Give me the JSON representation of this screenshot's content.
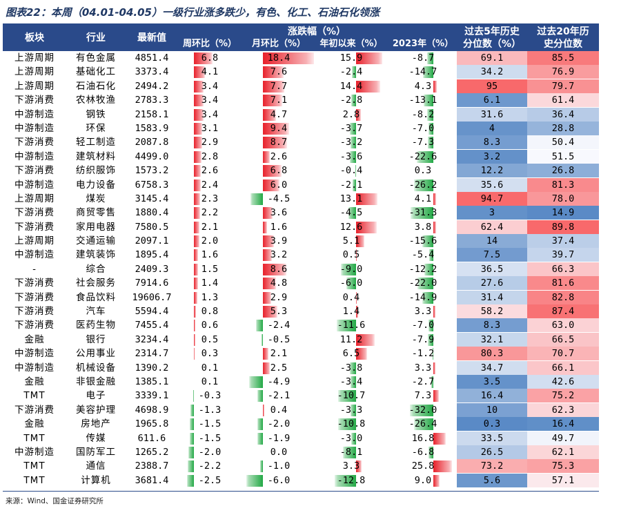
{
  "title": "图表22：本周（04.01-04.05）一级行业涨多跌少，有色、化工、石油石化领涨",
  "header": {
    "sector": "板块",
    "industry": "行业",
    "latest": "最新值",
    "change_group": "涨跌幅（%）",
    "weekly": "周环比（%）",
    "monthly": "月环比（%）",
    "ytd": "年初以来（%）",
    "y2023": "2023年（%）",
    "pct5_line1": "过去5年历史",
    "pct5_line2": "分位数（%）",
    "pct20_line1": "过去20年历",
    "pct20_line2": "史分位数"
  },
  "colors": {
    "header_bg": "#2a4a8a",
    "positive": "#e8202a",
    "negative": "#22a845",
    "heat_high": "#f8696b",
    "heat_mid": "#fcfcff",
    "heat_low": "#5a8ac6"
  },
  "rows": [
    {
      "sector": "上游周期",
      "industry": "有色金属",
      "latest": "4851.4",
      "w": "6.8",
      "m": "18.4",
      "ytd": "15.9",
      "y23": "-8.7",
      "p5": "69.1",
      "p20": "85.5"
    },
    {
      "sector": "上游周期",
      "industry": "基础化工",
      "latest": "3373.4",
      "w": "4.1",
      "m": "7.6",
      "ytd": "-2.4",
      "y23": "-14.7",
      "p5": "34.2",
      "p20": "76.9"
    },
    {
      "sector": "上游周期",
      "industry": "石油石化",
      "latest": "2494.2",
      "w": "3.4",
      "m": "7.7",
      "ytd": "14.4",
      "y23": "4.3",
      "p5": "95",
      "p20": "79.7"
    },
    {
      "sector": "下游消费",
      "industry": "农林牧渔",
      "latest": "2783.3",
      "w": "3.4",
      "m": "7.1",
      "ytd": "-2.8",
      "y23": "-13.1",
      "p5": "6.1",
      "p20": "61.4"
    },
    {
      "sector": "中游制造",
      "industry": "钢铁",
      "latest": "2158.1",
      "w": "3.4",
      "m": "4.7",
      "ytd": "2.8",
      "y23": "-8.2",
      "p5": "31.6",
      "p20": "36.4"
    },
    {
      "sector": "中游制造",
      "industry": "环保",
      "latest": "1583.9",
      "w": "3.1",
      "m": "9.4",
      "ytd": "-3.7",
      "y23": "-7.0",
      "p5": "4",
      "p20": "28.8"
    },
    {
      "sector": "下游消费",
      "industry": "轻工制造",
      "latest": "2087.8",
      "w": "2.9",
      "m": "8.7",
      "ytd": "-3.2",
      "y23": "-7.3",
      "p5": "8.3",
      "p20": "50.4"
    },
    {
      "sector": "中游制造",
      "industry": "建筑材料",
      "latest": "4499.0",
      "w": "2.8",
      "m": "2.6",
      "ytd": "-3.6",
      "y23": "-22.6",
      "p5": "3.2",
      "p20": "51.5"
    },
    {
      "sector": "下游消费",
      "industry": "纺织服饰",
      "latest": "1573.2",
      "w": "2.6",
      "m": "6.8",
      "ytd": "-0.4",
      "y23": "0.3",
      "p5": "12.2",
      "p20": "26.8"
    },
    {
      "sector": "中游制造",
      "industry": "电力设备",
      "latest": "6758.3",
      "w": "2.4",
      "m": "6.0",
      "ytd": "-2.1",
      "y23": "-26.2",
      "p5": "35.6",
      "p20": "81.3"
    },
    {
      "sector": "上游周期",
      "industry": "煤炭",
      "latest": "3145.4",
      "w": "2.3",
      "m": "-4.5",
      "ytd": "13.1",
      "y23": "4.1",
      "p5": "94.7",
      "p20": "78.0"
    },
    {
      "sector": "下游消费",
      "industry": "商贸零售",
      "latest": "1880.4",
      "w": "2.2",
      "m": "3.6",
      "ytd": "-4.5",
      "y23": "-31.3",
      "p5": "3",
      "p20": "14.9"
    },
    {
      "sector": "下游消费",
      "industry": "家用电器",
      "latest": "7580.5",
      "w": "2.1",
      "m": "1.6",
      "ytd": "12.6",
      "y23": "3.8",
      "p5": "62.4",
      "p20": "89.8"
    },
    {
      "sector": "上游周期",
      "industry": "交通运输",
      "latest": "2097.1",
      "w": "2.0",
      "m": "3.9",
      "ytd": "5.1",
      "y23": "-15.6",
      "p5": "14",
      "p20": "37.4"
    },
    {
      "sector": "中游制造",
      "industry": "建筑装饰",
      "latest": "1895.4",
      "w": "1.6",
      "m": "3.2",
      "ytd": "0.5",
      "y23": "-5.4",
      "p5": "7.5",
      "p20": "39.7"
    },
    {
      "sector": "-",
      "industry": "综合",
      "latest": "2409.3",
      "w": "1.5",
      "m": "8.6",
      "ytd": "-9.0",
      "y23": "-12.2",
      "p5": "36.5",
      "p20": "66.3"
    },
    {
      "sector": "下游消费",
      "industry": "社会服务",
      "latest": "7914.6",
      "w": "1.4",
      "m": "4.8",
      "ytd": "-6.0",
      "y23": "-22.0",
      "p5": "27.6",
      "p20": "81.6"
    },
    {
      "sector": "下游消费",
      "industry": "食品饮料",
      "latest": "19606.7",
      "w": "1.3",
      "m": "2.9",
      "ytd": "0.4",
      "y23": "-14.9",
      "p5": "31.4",
      "p20": "82.8"
    },
    {
      "sector": "下游消费",
      "industry": "汽车",
      "latest": "5594.4",
      "w": "0.8",
      "m": "5.3",
      "ytd": "1.4",
      "y23": "3.3",
      "p5": "58.2",
      "p20": "87.4"
    },
    {
      "sector": "下游消费",
      "industry": "医药生物",
      "latest": "7455.4",
      "w": "0.6",
      "m": "-2.4",
      "ytd": "-11.6",
      "y23": "-7.0",
      "p5": "8.3",
      "p20": "63.0"
    },
    {
      "sector": "金融",
      "industry": "银行",
      "latest": "3234.4",
      "w": "0.5",
      "m": "-0.5",
      "ytd": "11.2",
      "y23": "-7.9",
      "p5": "32.1",
      "p20": "66.5"
    },
    {
      "sector": "中游制造",
      "industry": "公用事业",
      "latest": "2314.7",
      "w": "0.3",
      "m": "2.1",
      "ytd": "6.5",
      "y23": "-1.2",
      "p5": "80.3",
      "p20": "70.7"
    },
    {
      "sector": "中游制造",
      "industry": "机械设备",
      "latest": "1390.2",
      "w": "0.1",
      "m": "2.5",
      "ytd": "-3.8",
      "y23": "3.3",
      "p5": "34.7",
      "p20": "66.1"
    },
    {
      "sector": "金融",
      "industry": "非银金融",
      "latest": "1385.1",
      "w": "0.1",
      "m": "-4.9",
      "ytd": "-3.4",
      "y23": "-2.7",
      "p5": "3.5",
      "p20": "42.6"
    },
    {
      "sector": "TMT",
      "industry": "电子",
      "latest": "3339.1",
      "w": "-0.3",
      "m": "-2.1",
      "ytd": "-10.7",
      "y23": "7.3",
      "p5": "16.4",
      "p20": "75.2"
    },
    {
      "sector": "下游消费",
      "industry": "美容护理",
      "latest": "4698.9",
      "w": "-1.3",
      "m": "0.4",
      "ytd": "-3.3",
      "y23": "-32.0",
      "p5": "10",
      "p20": "62.3"
    },
    {
      "sector": "金融",
      "industry": "房地产",
      "latest": "1965.8",
      "w": "-1.5",
      "m": "-2.0",
      "ytd": "-10.8",
      "y23": "-26.4",
      "p5": "0.3",
      "p20": "16.4"
    },
    {
      "sector": "TMT",
      "industry": "传媒",
      "latest": "611.6",
      "w": "-1.5",
      "m": "-1.9",
      "ytd": "-3.0",
      "y23": "16.8",
      "p5": "33.5",
      "p20": "49.7"
    },
    {
      "sector": "中游制造",
      "industry": "国防军工",
      "latest": "1265.2",
      "w": "-2.0",
      "m": "0.0",
      "ytd": "-8.1",
      "y23": "-6.8",
      "p5": "26.5",
      "p20": "62.1"
    },
    {
      "sector": "TMT",
      "industry": "通信",
      "latest": "2388.7",
      "w": "-2.2",
      "m": "-1.0",
      "ytd": "3.3",
      "y23": "25.8",
      "p5": "73.2",
      "p20": "75.3"
    },
    {
      "sector": "TMT",
      "industry": "计算机",
      "latest": "3681.4",
      "w": "-2.5",
      "m": "-6.0",
      "ytd": "-12.8",
      "y23": "9.0",
      "p5": "5.6",
      "p20": "57.1"
    }
  ],
  "source": "来源：Wind、国金证券研究所"
}
